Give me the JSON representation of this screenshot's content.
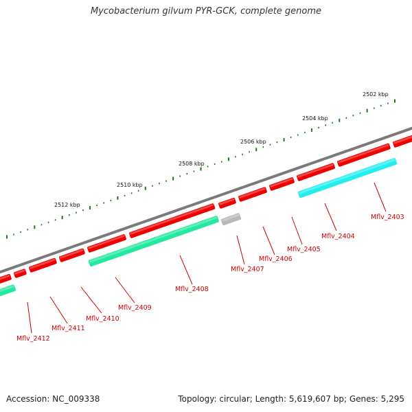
{
  "title": "Mycobacterium gilvum PYR-GCK, complete genome",
  "footer": {
    "accession": "Accession: NC_009338",
    "topology": "Topology: circular; Length: 5,619,607 bp; Genes: 5,295"
  },
  "colors": {
    "backbone": "#808080",
    "gene_red": "#ee0000",
    "gene_green": "#22e8a0",
    "gene_cyan": "#22eeee",
    "gene_gray": "#b8b8b8",
    "tick": "#1a7a1a",
    "label": "#cc0000"
  },
  "scale_labels": [
    "2502 kbp",
    "2504 kbp",
    "2506 kbp",
    "2508 kbp",
    "2510 kbp",
    "2512 kbp"
  ],
  "gene_labels": [
    "Mflv_2403",
    "Mflv_2404",
    "Mflv_2405",
    "Mflv_2406",
    "Mflv_2407",
    "Mflv_2408",
    "Mflv_2409",
    "Mflv_2410",
    "Mflv_2411",
    "Mflv_2412"
  ]
}
